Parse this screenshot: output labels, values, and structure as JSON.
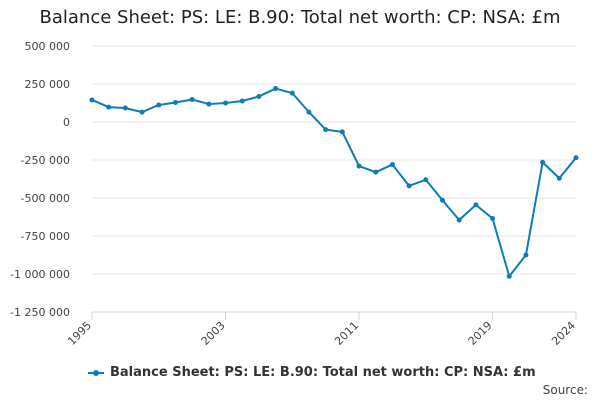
{
  "title": "Balance Sheet: PS: LE: B.90: Total net worth: CP: NSA: £m",
  "source_label": "Source:",
  "colors": {
    "series": "#0f7bb7",
    "grid": "#e6e6e6",
    "axis": "#ccd6eb"
  },
  "chart_data": {
    "type": "line",
    "title": "Balance Sheet: PS: LE: B.90: Total net worth: CP: NSA: £m",
    "xlabel": "",
    "ylabel": "",
    "ylim": [
      -1250000,
      500000
    ],
    "yticks": [
      500000,
      250000,
      0,
      -250000,
      -500000,
      -750000,
      -1000000,
      -1250000
    ],
    "ytick_labels": [
      "500 000",
      "250 000",
      "0",
      "-250 000",
      "-500 000",
      "-750 000",
      "-1 000 000",
      "-1 250 000"
    ],
    "xticks": [
      1995,
      2003,
      2011,
      2019,
      2024
    ],
    "xlim": [
      1995,
      2024
    ],
    "grid": true,
    "legend_position": "bottom",
    "series": [
      {
        "name": "Balance Sheet: PS: LE: B.90: Total net worth: CP: NSA: £m",
        "x": [
          1995,
          1996,
          1997,
          1998,
          1999,
          2000,
          2001,
          2002,
          2003,
          2004,
          2005,
          2006,
          2007,
          2008,
          2009,
          2010,
          2011,
          2012,
          2013,
          2014,
          2015,
          2016,
          2017,
          2018,
          2019,
          2020,
          2021,
          2022,
          2023,
          2024
        ],
        "values": [
          145000,
          98000,
          92000,
          65000,
          112000,
          128000,
          148000,
          118000,
          125000,
          138000,
          168000,
          220000,
          190000,
          65000,
          -50000,
          -65000,
          -290000,
          -330000,
          -280000,
          -420000,
          -380000,
          -515000,
          -645000,
          -545000,
          -635000,
          -1015000,
          -875000,
          -265000,
          -370000,
          -235000
        ]
      }
    ]
  }
}
